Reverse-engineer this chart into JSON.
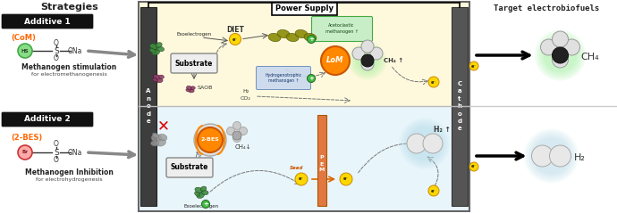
{
  "title_left": "Strategies",
  "title_right": "Target electrobiofuels",
  "additive1_label": "Additive 1",
  "additive2_label": "Additive 2",
  "com_label": "(CoM)",
  "bes_label": "(2-BES)",
  "desc1_bold": "Methanogen stimulation",
  "desc1_light": "for electromethanogenesis",
  "desc2_bold": "Methanogen Inhibition",
  "desc2_light": "for electrohydrogenesis",
  "power_supply": "Power Supply",
  "anode_label": "A\nn\no\nd\ne",
  "cathode_label": "C\na\nt\nh\no\nd\ne",
  "ch4_label": "CH₄",
  "h2_label": "H₂",
  "diet_label": "DIET",
  "exoelectrogen_label": "Exoelectrogen",
  "substrate_label": "Substrate",
  "saob_label": "SAOB",
  "h2_label2": "H₂",
  "co2_label": "CO₂",
  "ch4_up": "CH₄ ↑",
  "h2_up": "H₂ ↑",
  "ch4_down": "CH₄↓",
  "lom_label": "LoM",
  "bes_inner": "2-BES",
  "pem_label": "P\nE\nM",
  "seed_label": "Seed",
  "acetoclastic_label": "Acetoclastic\nmethanogen ↑",
  "hydrogenotrophic_label": "Hydrogenotrophic\nmethanogen ↑",
  "bg_top": "#FEF9DC",
  "bg_bot": "#E8F5FB",
  "elec_color": "#3A3A3A",
  "orange": "#FF8800",
  "lom_orange": "#FF8800",
  "green_glow": "#90EE90",
  "blue_glow": "#ADD8E6",
  "gold": "#FFD700",
  "pem_color": "#E07840"
}
